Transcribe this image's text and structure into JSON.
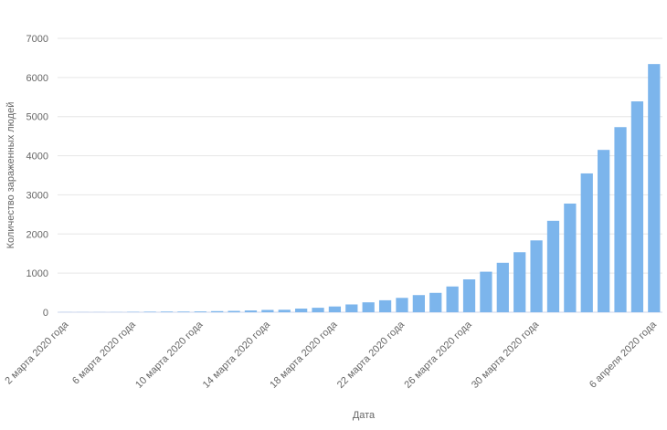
{
  "chart_data": {
    "type": "bar",
    "x_label": "Дата",
    "y_label": "Количество зараженных людей",
    "categories": [
      "2 марта 2020 года",
      null,
      null,
      null,
      "6 марта 2020 года",
      null,
      null,
      null,
      "10 марта 2020 года",
      null,
      null,
      null,
      "14 марта 2020 года",
      null,
      null,
      null,
      "18 марта 2020 года",
      null,
      null,
      null,
      "22 марта 2020 года",
      null,
      null,
      null,
      "26 марта 2020 года",
      null,
      null,
      null,
      "30 марта 2020 года",
      null,
      null,
      null,
      null,
      null,
      null,
      "6 апреля 2020 года"
    ],
    "values": [
      3,
      3,
      3,
      4,
      10,
      14,
      17,
      17,
      20,
      28,
      34,
      45,
      59,
      63,
      93,
      114,
      147,
      199,
      253,
      306,
      367,
      438,
      495,
      658,
      840,
      1036,
      1264,
      1534,
      1836,
      2337,
      2777,
      3548,
      4149,
      4731,
      5389,
      6343
    ],
    "color": "#7cb5ec",
    "ylim": [
      0,
      7000
    ],
    "yticks": [
      0,
      1000,
      2000,
      3000,
      4000,
      5000,
      6000,
      7000
    ],
    "grid": true
  }
}
